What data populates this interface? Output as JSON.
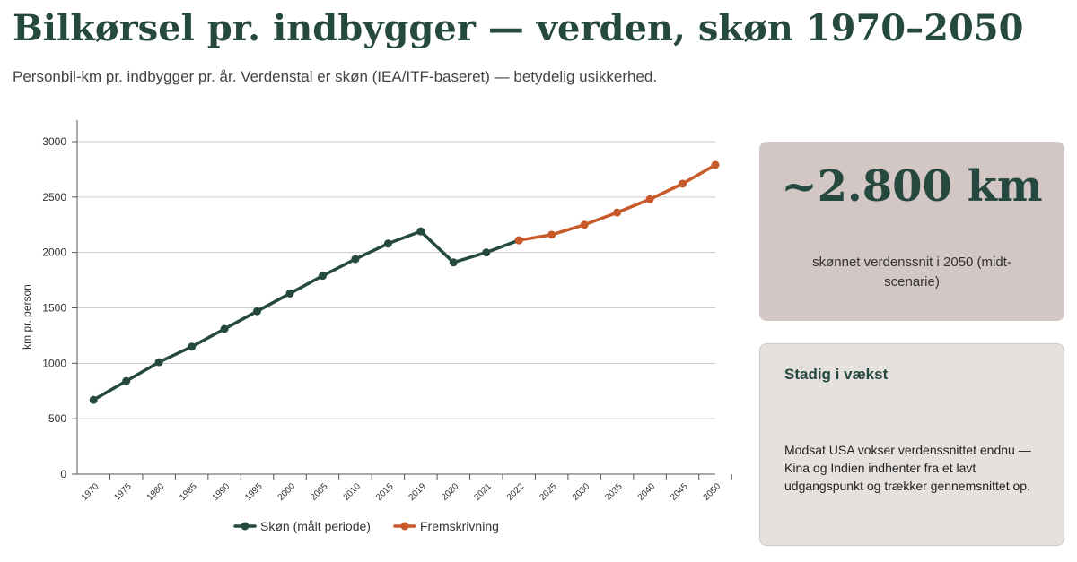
{
  "header": {
    "title": "Bilkørsel pr. indbygger — verden, skøn 1970–2050",
    "subtitle": "Personbil-km pr. indbygger pr. år. Verdenstal er skøn (IEA/ITF-baseret) — betydelig usikkerhed."
  },
  "chart_data": {
    "type": "line",
    "title": "",
    "xlabel": "",
    "ylabel": "km pr. person",
    "ylim": [
      0,
      3000
    ],
    "yticks": [
      0,
      500,
      1000,
      1500,
      2000,
      2500,
      3000
    ],
    "grid": true,
    "legend_position": "bottom",
    "categories": [
      "1970",
      "1975",
      "1980",
      "1985",
      "1990",
      "1995",
      "2000",
      "2005",
      "2010",
      "2015",
      "2019",
      "2020",
      "2021",
      "2022",
      "2025",
      "2030",
      "2035",
      "2040",
      "2045",
      "2050"
    ],
    "series": [
      {
        "name": "Skøn (målt periode)",
        "color": "#25493f",
        "x": [
          "1970",
          "1975",
          "1980",
          "1985",
          "1990",
          "1995",
          "2000",
          "2005",
          "2010",
          "2015",
          "2019",
          "2020",
          "2021",
          "2022"
        ],
        "values": [
          670,
          840,
          1010,
          1150,
          1310,
          1470,
          1630,
          1790,
          1940,
          2080,
          2190,
          1910,
          2000,
          2110
        ]
      },
      {
        "name": "Fremskrivning",
        "color": "#c8592a",
        "x": [
          "2022",
          "2025",
          "2030",
          "2035",
          "2040",
          "2045",
          "2050"
        ],
        "values": [
          2110,
          2160,
          2250,
          2360,
          2480,
          2620,
          2790
        ]
      }
    ]
  },
  "highlight": {
    "value": "~2.800 km",
    "caption": "skønnet verdenssnit i 2050 (midt-scenarie)"
  },
  "note": {
    "title": "Stadig i vækst",
    "body": "Modsat USA vokser verdenssnittet endnu — Kina og Indien indhenter fra et lavt udgangspunkt og trækker gennemsnittet op."
  }
}
